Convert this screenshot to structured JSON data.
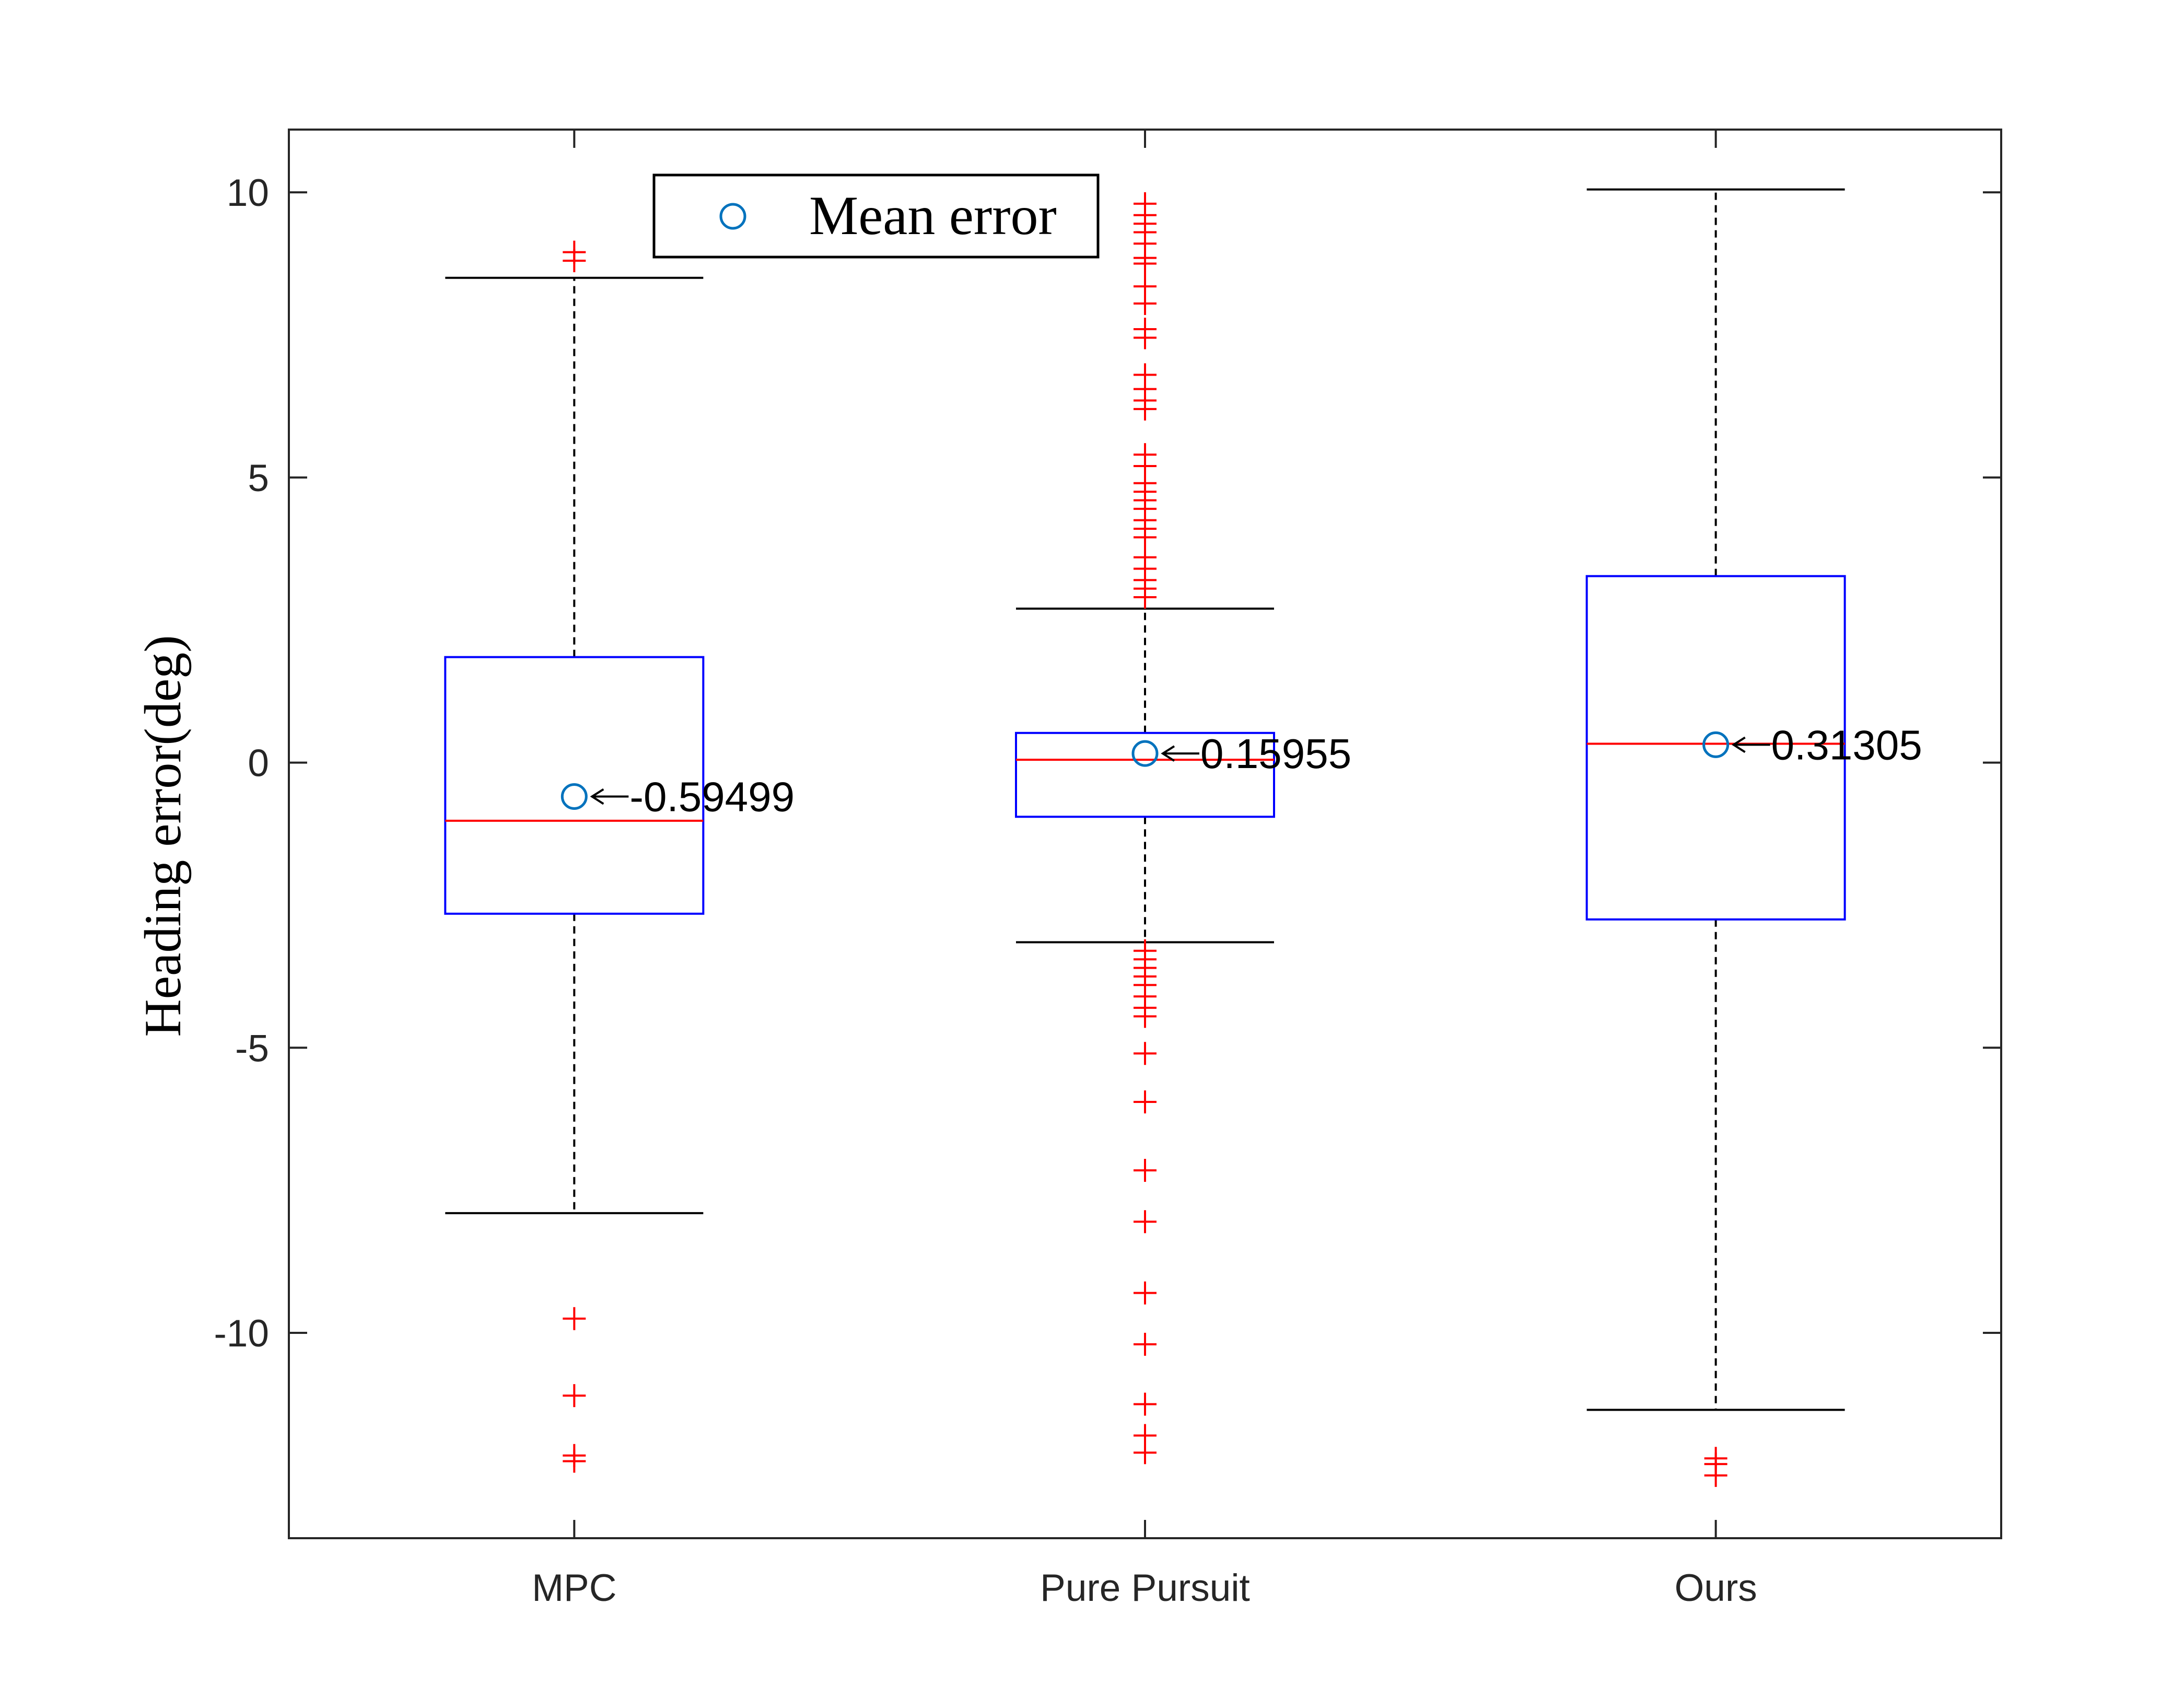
{
  "chart_data": {
    "type": "boxplot",
    "title": "",
    "xlabel": "",
    "ylabel": "Heading error(deg)",
    "ylim": [
      -13.6,
      11.1
    ],
    "yticks": [
      10,
      5,
      0,
      -5,
      -10
    ],
    "ytick_labels": [
      "10",
      "5",
      "0",
      "-5",
      "-10"
    ],
    "grid": false,
    "legend": {
      "label": "Mean error",
      "position": "top-left",
      "marker": "circle"
    },
    "categories": [
      "MPC",
      "Pure Pursuit",
      "Ours"
    ],
    "boxes": [
      {
        "category": "MPC",
        "q1": -2.65,
        "median": -1.02,
        "q3": 1.85,
        "whisker_low": -7.9,
        "whisker_high": 8.5,
        "mean": -0.59499,
        "mean_label": "-0.59499",
        "outliers": [
          8.95,
          8.8,
          -9.75,
          -11.1,
          -12.15,
          -12.25
        ]
      },
      {
        "category": "Pure Pursuit",
        "q1": -0.95,
        "median": 0.05,
        "q3": 0.52,
        "whisker_low": -3.15,
        "whisker_high": 2.7,
        "mean": 0.15955,
        "mean_label": "0.15955",
        "outliers": [
          9.8,
          9.6,
          9.45,
          9.3,
          9.1,
          8.85,
          8.75,
          8.35,
          8.05,
          7.6,
          7.45,
          6.8,
          6.55,
          6.35,
          6.2,
          5.4,
          5.2,
          4.9,
          4.75,
          4.6,
          4.45,
          4.25,
          4.1,
          3.95,
          3.6,
          3.4,
          3.2,
          3.05,
          2.9,
          -3.3,
          -3.45,
          -3.6,
          -3.75,
          -3.9,
          -4.1,
          -4.3,
          -4.45,
          -5.1,
          -5.95,
          -7.15,
          -8.05,
          -9.3,
          -10.2,
          -11.25,
          -11.8,
          -12.1
        ]
      },
      {
        "category": "Ours",
        "q1": -2.75,
        "median": 0.33,
        "q3": 3.27,
        "whisker_low": -11.35,
        "whisker_high": 10.05,
        "mean": 0.31305,
        "mean_label": "0.31305",
        "outliers": [
          -12.2,
          -12.3,
          -12.5
        ]
      }
    ],
    "colors": {
      "box": "#0000ff",
      "median": "#ff0000",
      "outlier": "#ff0000",
      "whisker": "#000000",
      "mean_marker": "#0072bd",
      "axes": "#262626"
    }
  }
}
